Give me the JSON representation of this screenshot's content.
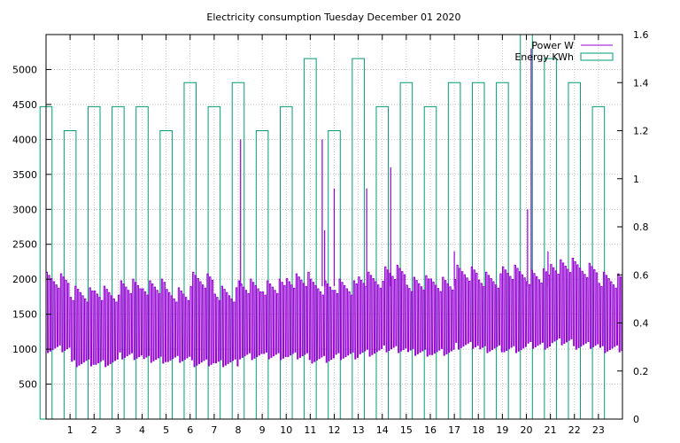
{
  "chart_data": {
    "type": "bar+line",
    "title": "Electricity consumption Tuesday December 01 2020",
    "xlabel": "",
    "ylabel": "",
    "y2label": "",
    "x_range": [
      0,
      24
    ],
    "x_ticks": [
      "1",
      "2",
      "3",
      "4",
      "5",
      "6",
      "7",
      "8",
      "9",
      "10",
      "11",
      "12",
      "13",
      "14",
      "15",
      "16",
      "17",
      "18",
      "19",
      "20",
      "21",
      "22",
      "23"
    ],
    "y_left": {
      "range": [
        0,
        5500
      ],
      "ticks": [
        "500",
        "1000",
        "1500",
        "2000",
        "2500",
        "3000",
        "3500",
        "4000",
        "4500",
        "5000"
      ]
    },
    "y_right": {
      "range": [
        0,
        1.6
      ],
      "ticks": [
        "0",
        "0.2",
        "0.4",
        "0.6",
        "0.8",
        "1",
        "1.2",
        "1.4",
        "1.6"
      ]
    },
    "grid": true,
    "legend_position": "top-right",
    "series": [
      {
        "name": "Power W",
        "axis": "left",
        "color": "#9400d3",
        "style": "line",
        "hours": [
          0,
          1,
          2,
          3,
          4,
          5,
          6,
          7,
          8,
          9,
          10,
          11,
          12,
          13,
          14,
          15,
          16,
          17,
          18,
          19,
          20,
          21,
          22,
          23
        ],
        "low": [
          950,
          750,
          750,
          850,
          800,
          800,
          750,
          750,
          850,
          850,
          850,
          800,
          850,
          900,
          950,
          900,
          900,
          1000,
          950,
          950,
          1000,
          1050,
          1000,
          950
        ],
        "high": [
          2100,
          1900,
          1900,
          2000,
          2000,
          1900,
          2100,
          1900,
          2000,
          2000,
          2100,
          2000,
          2000,
          2100,
          2200,
          2050,
          2050,
          2200,
          2100,
          2200,
          2150,
          2300,
          2250,
          2100
        ],
        "spikes": [
          {
            "x": 8.1,
            "y": 4000
          },
          {
            "x": 11.5,
            "y": 4000
          },
          {
            "x": 11.6,
            "y": 2700
          },
          {
            "x": 12.0,
            "y": 3300
          },
          {
            "x": 13.35,
            "y": 3300
          },
          {
            "x": 14.35,
            "y": 3600
          },
          {
            "x": 17.0,
            "y": 2400
          },
          {
            "x": 20.05,
            "y": 3000
          },
          {
            "x": 20.2,
            "y": 5300
          },
          {
            "x": 20.9,
            "y": 2400
          }
        ]
      },
      {
        "name": "Energy KWh",
        "axis": "right",
        "color": "#009e73",
        "style": "boxes",
        "hours": [
          0,
          1,
          2,
          3,
          4,
          5,
          6,
          7,
          8,
          9,
          10,
          11,
          12,
          13,
          14,
          15,
          16,
          17,
          18,
          19,
          20,
          21,
          22,
          23
        ],
        "values": [
          1.3,
          1.2,
          1.3,
          1.3,
          1.3,
          1.2,
          1.4,
          1.3,
          1.4,
          1.2,
          1.3,
          1.5,
          1.2,
          1.5,
          1.3,
          1.4,
          1.3,
          1.4,
          1.4,
          1.4,
          1.6,
          1.5,
          1.4,
          1.3
        ]
      }
    ]
  }
}
